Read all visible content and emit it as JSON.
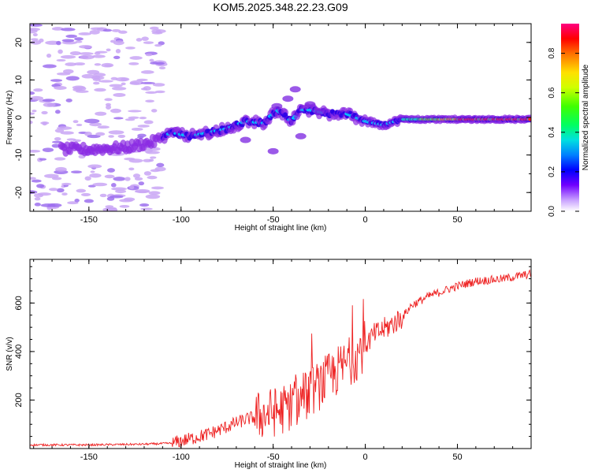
{
  "title": "KOM5.2025.348.22.23.G09",
  "chart_data": [
    {
      "type": "heatmap",
      "xlabel": "Height of straight line (km)",
      "ylabel": "Frequency (Hz)",
      "xlim": [
        -182,
        90
      ],
      "ylim": [
        -25,
        25
      ],
      "xticks": [
        -150,
        -100,
        -50,
        0,
        50
      ],
      "yticks": [
        -20,
        -10,
        0,
        10,
        20
      ],
      "xtick_labels": [
        "-150",
        "-100",
        "-50",
        "0",
        "50"
      ],
      "ytick_labels": [
        "-20",
        "-10",
        "0",
        "10",
        "20"
      ],
      "ridge": [
        [
          -150,
          -8.5
        ],
        [
          -130,
          -8
        ],
        [
          -115,
          -6.5
        ],
        [
          -105,
          -4
        ],
        [
          -95,
          -5
        ],
        [
          -85,
          -4
        ],
        [
          -75,
          -3
        ],
        [
          -65,
          -1
        ],
        [
          -55,
          -1.5
        ],
        [
          -48,
          2
        ],
        [
          -40,
          -1
        ],
        [
          -35,
          2
        ],
        [
          -30,
          2
        ],
        [
          -20,
          1
        ],
        [
          -10,
          1
        ],
        [
          0,
          -1
        ],
        [
          10,
          -2
        ],
        [
          20,
          -0.5
        ],
        [
          40,
          -0.5
        ],
        [
          60,
          -0.5
        ],
        [
          90,
          -0.5
        ]
      ],
      "colorbar": {
        "label": "Normalized spectral amplitude",
        "range": [
          0,
          0.95
        ],
        "ticks": [
          0.0,
          0.2,
          0.4,
          0.6,
          0.8
        ],
        "tick_labels": [
          "0.0",
          "0.2",
          "0.4",
          "0.6",
          "0.8"
        ]
      }
    },
    {
      "type": "line",
      "xlabel": "Height of straight line (km)",
      "ylabel": "SNR (v/v)",
      "xlim": [
        -182,
        90
      ],
      "ylim": [
        0,
        780
      ],
      "xticks": [
        -150,
        -100,
        -50,
        0,
        50
      ],
      "yticks": [
        200,
        400,
        600
      ],
      "xtick_labels": [
        "-150",
        "-100",
        "-50",
        "0",
        "50"
      ],
      "ytick_labels": [
        "200",
        "400",
        "600"
      ],
      "color": "#ee2222",
      "trend": [
        [
          -182,
          15
        ],
        [
          -150,
          15
        ],
        [
          -120,
          18
        ],
        [
          -105,
          22
        ],
        [
          -95,
          40
        ],
        [
          -85,
          60
        ],
        [
          -75,
          90
        ],
        [
          -65,
          120
        ],
        [
          -55,
          140
        ],
        [
          -45,
          160
        ],
        [
          -35,
          200
        ],
        [
          -25,
          260
        ],
        [
          -15,
          320
        ],
        [
          -5,
          380
        ],
        [
          0,
          430
        ],
        [
          5,
          470
        ],
        [
          12,
          500
        ],
        [
          20,
          540
        ],
        [
          25,
          590
        ],
        [
          35,
          630
        ],
        [
          50,
          670
        ],
        [
          60,
          690
        ],
        [
          75,
          700
        ],
        [
          90,
          720
        ]
      ]
    }
  ]
}
